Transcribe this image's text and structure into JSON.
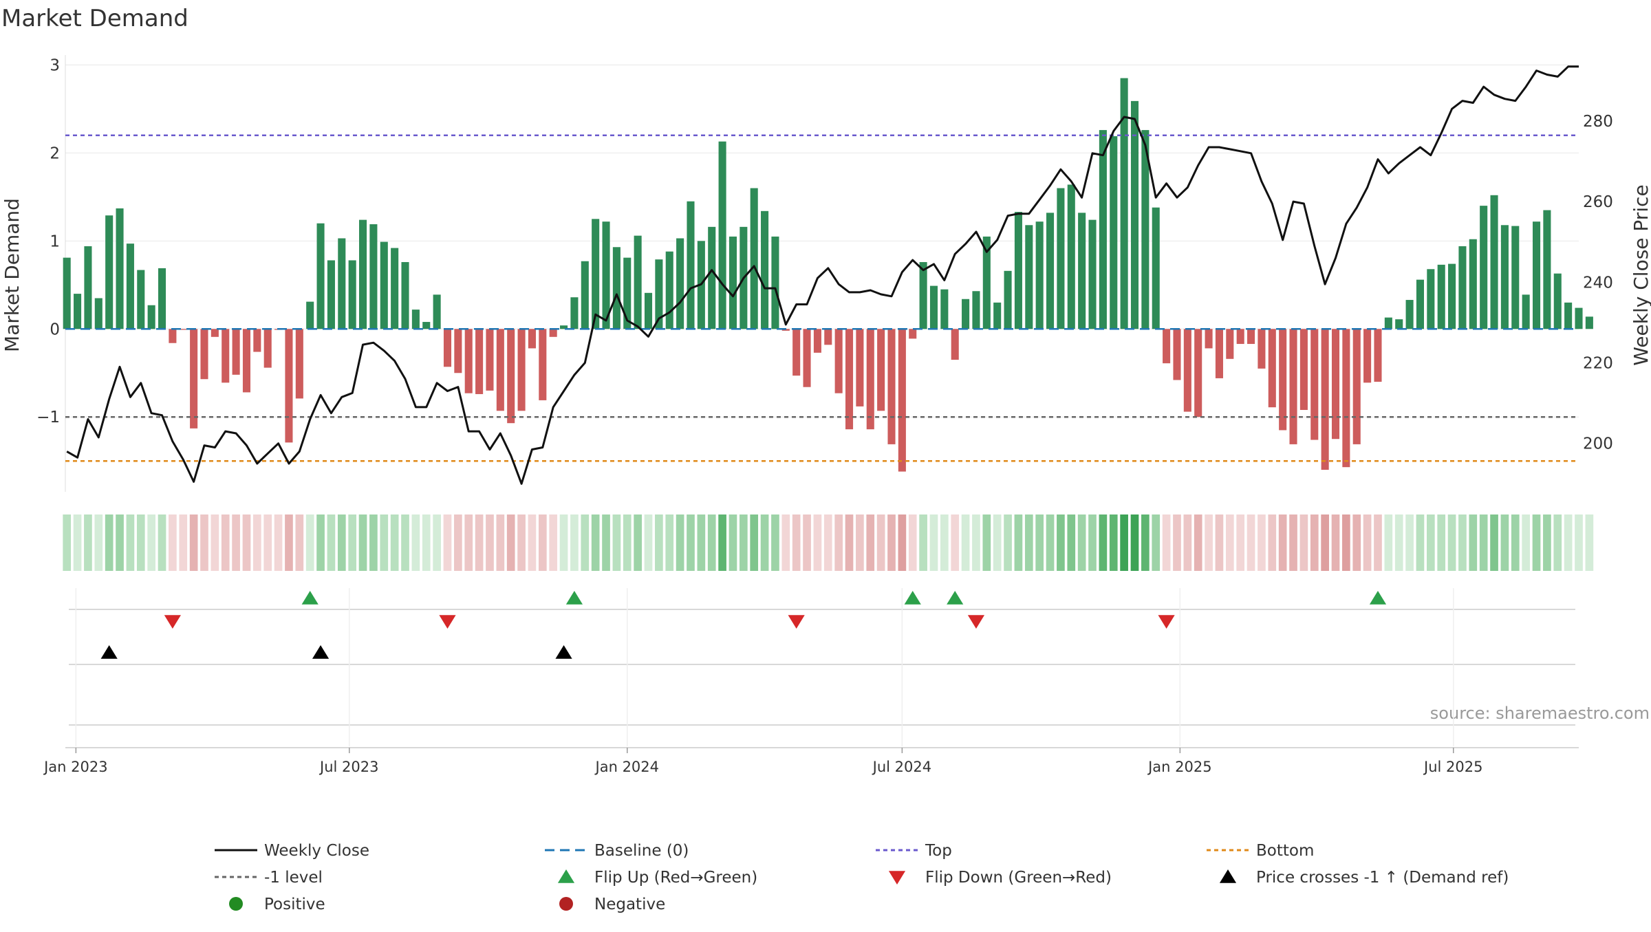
{
  "chart_data": {
    "type": "bar",
    "title": "Market Demand",
    "ylabel": "Market Demand",
    "y2label": "Weekly Close Price",
    "source": "source: sharemaestro.com",
    "ylim": [
      -1.85,
      3.05
    ],
    "y2lim": [
      188,
      295
    ],
    "yticks": [
      3,
      2,
      1,
      0,
      -1
    ],
    "ytick_labels": [
      "3",
      "2",
      "1",
      "0",
      "−1"
    ],
    "y2ticks": [
      280,
      260,
      240,
      220,
      200
    ],
    "x_start": "2022-12-25",
    "x_end": "2025-09-22",
    "week_start": "2022-12-26",
    "xticks": [
      {
        "label": "Jan 2023",
        "date": "2023-01-01"
      },
      {
        "label": "Jul 2023",
        "date": "2023-07-01"
      },
      {
        "label": "Jan 2024",
        "date": "2024-01-01"
      },
      {
        "label": "Jul 2024",
        "date": "2024-07-01"
      },
      {
        "label": "Jan 2025",
        "date": "2025-01-01"
      },
      {
        "label": "Jul 2025",
        "date": "2025-07-01"
      }
    ],
    "levels": {
      "top": 2.2,
      "minus_one": -1,
      "bottom": -1.5,
      "baseline": 0
    },
    "series": [
      {
        "name": "Market Demand",
        "values": [
          0.81,
          0.4,
          0.94,
          0.35,
          1.29,
          1.37,
          0.97,
          0.67,
          0.27,
          0.69,
          -0.16,
          -0.01,
          -1.13,
          -0.57,
          -0.09,
          -0.61,
          -0.52,
          -0.72,
          -0.26,
          -0.44,
          -0.01,
          -1.29,
          -0.79,
          0.31,
          1.2,
          0.78,
          1.03,
          0.78,
          1.24,
          1.19,
          0.99,
          0.92,
          0.76,
          0.22,
          0.08,
          0.39,
          -0.43,
          -0.5,
          -0.73,
          -0.74,
          -0.7,
          -0.93,
          -1.07,
          -0.93,
          -0.22,
          -0.81,
          -0.09,
          0.04,
          0.36,
          0.77,
          1.25,
          1.22,
          0.93,
          0.81,
          1.06,
          0.41,
          0.79,
          0.88,
          1.03,
          1.45,
          1.0,
          1.16,
          2.13,
          1.05,
          1.16,
          1.6,
          1.34,
          1.05,
          -0.02,
          -0.53,
          -0.66,
          -0.27,
          -0.18,
          -0.73,
          -1.14,
          -0.88,
          -1.14,
          -0.93,
          -1.31,
          -1.62,
          -0.11,
          0.76,
          0.49,
          0.45,
          -0.35,
          0.34,
          0.43,
          1.05,
          0.3,
          0.66,
          1.33,
          1.18,
          1.22,
          1.32,
          1.6,
          1.64,
          1.32,
          1.24,
          2.26,
          2.19,
          2.85,
          2.59,
          2.26,
          1.38,
          -0.39,
          -0.58,
          -0.94,
          -1.0,
          -0.22,
          -0.56,
          -0.34,
          -0.17,
          -0.17,
          -0.45,
          -0.89,
          -1.15,
          -1.31,
          -0.92,
          -1.26,
          -1.6,
          -1.25,
          -1.57,
          -1.31,
          -0.61,
          -0.6,
          0.13,
          0.11,
          0.33,
          0.56,
          0.68,
          0.73,
          0.74,
          0.94,
          1.02,
          1.4,
          1.52,
          1.18,
          1.17,
          0.39,
          1.22,
          1.35,
          0.63,
          0.3,
          0.24,
          0.14
        ]
      },
      {
        "name": "Weekly Close",
        "values": [
          198,
          196.5,
          206,
          201.5,
          211,
          219,
          211.5,
          215,
          207.5,
          207,
          200.5,
          196,
          190.5,
          199.5,
          199,
          203,
          202.5,
          199.5,
          195,
          197.5,
          200,
          195,
          198,
          206,
          212,
          207.5,
          211.5,
          212.5,
          224.5,
          225,
          223,
          220.5,
          216,
          209,
          209,
          215,
          213,
          214,
          203,
          203,
          198.5,
          202.5,
          197,
          190,
          198.5,
          199,
          209,
          213,
          217,
          220,
          232,
          230.5,
          237,
          230.5,
          229,
          226.5,
          231,
          232.5,
          235,
          238.5,
          239.5,
          243,
          239.5,
          236.5,
          241,
          244,
          238.5,
          238.5,
          229.5,
          234.5,
          234.5,
          241,
          243.5,
          239.5,
          237.5,
          237.5,
          238,
          237,
          236.5,
          242.5,
          245.5,
          243,
          244.5,
          240.5,
          247,
          249.5,
          252.5,
          247.5,
          250.5,
          256.5,
          257,
          257,
          260.5,
          264,
          268,
          265,
          261,
          272,
          271.5,
          277.5,
          281,
          280.5,
          274,
          261,
          264.5,
          261,
          263.5,
          269,
          273.5,
          273.5,
          273,
          272.5,
          272,
          265,
          259.5,
          250.5,
          260,
          259.5,
          249,
          239.5,
          246,
          254.5,
          258.5,
          263.5,
          270.5,
          267,
          269.5,
          271.5,
          273.5,
          271.5,
          277,
          283,
          285,
          284.5,
          288.5,
          286.5,
          285.5,
          285,
          288.5,
          292.5,
          291.5,
          291,
          293.5,
          293.5
        ]
      }
    ],
    "heatmap_strip": {
      "name": "Demand intensity",
      "based_on": "Market Demand"
    },
    "flip_up_dates": [
      "2023-06-05",
      "2023-11-27",
      "2024-07-08",
      "2024-08-05",
      "2025-05-12"
    ],
    "flip_down_dates": [
      "2023-03-06",
      "2023-09-04",
      "2024-04-22",
      "2024-08-19",
      "2024-12-23"
    ],
    "price_cross_dates": [
      "2023-01-23",
      "2023-06-12",
      "2023-11-20"
    ],
    "legend": [
      {
        "label": "Weekly Close",
        "style": "solid-line",
        "color": "#111111"
      },
      {
        "label": "Baseline (0)",
        "style": "dash-line",
        "color": "#1f77b4"
      },
      {
        "label": "Top",
        "style": "dot-line",
        "color": "#6a5acd"
      },
      {
        "label": "Bottom",
        "style": "dot-line",
        "color": "#e08a1a"
      },
      {
        "label": "-1 level",
        "style": "dot-line",
        "color": "#666666"
      },
      {
        "label": "Flip Up (Red→Green)",
        "style": "triangle-up",
        "color": "#2ca04a"
      },
      {
        "label": "Flip Down (Green→Red)",
        "style": "triangle-down",
        "color": "#d62728"
      },
      {
        "label": "Price crosses -1 ↑ (Demand ref)",
        "style": "triangle-up",
        "color": "#000000"
      },
      {
        "label": "Positive",
        "style": "circle",
        "color": "#228b22"
      },
      {
        "label": "Negative",
        "style": "circle",
        "color": "#b22222"
      }
    ],
    "colors": {
      "positive_bar": "#2e8b57",
      "negative_bar": "#cd5c5c",
      "price_line": "#111111",
      "baseline": "#1f77b4",
      "top": "#6a5acd",
      "bottom": "#e08a1a",
      "minus_one": "#666666",
      "flip_up": "#2ca04a",
      "flip_down": "#d62728",
      "price_cross": "#000000",
      "grid": "#e8e8e8"
    }
  }
}
